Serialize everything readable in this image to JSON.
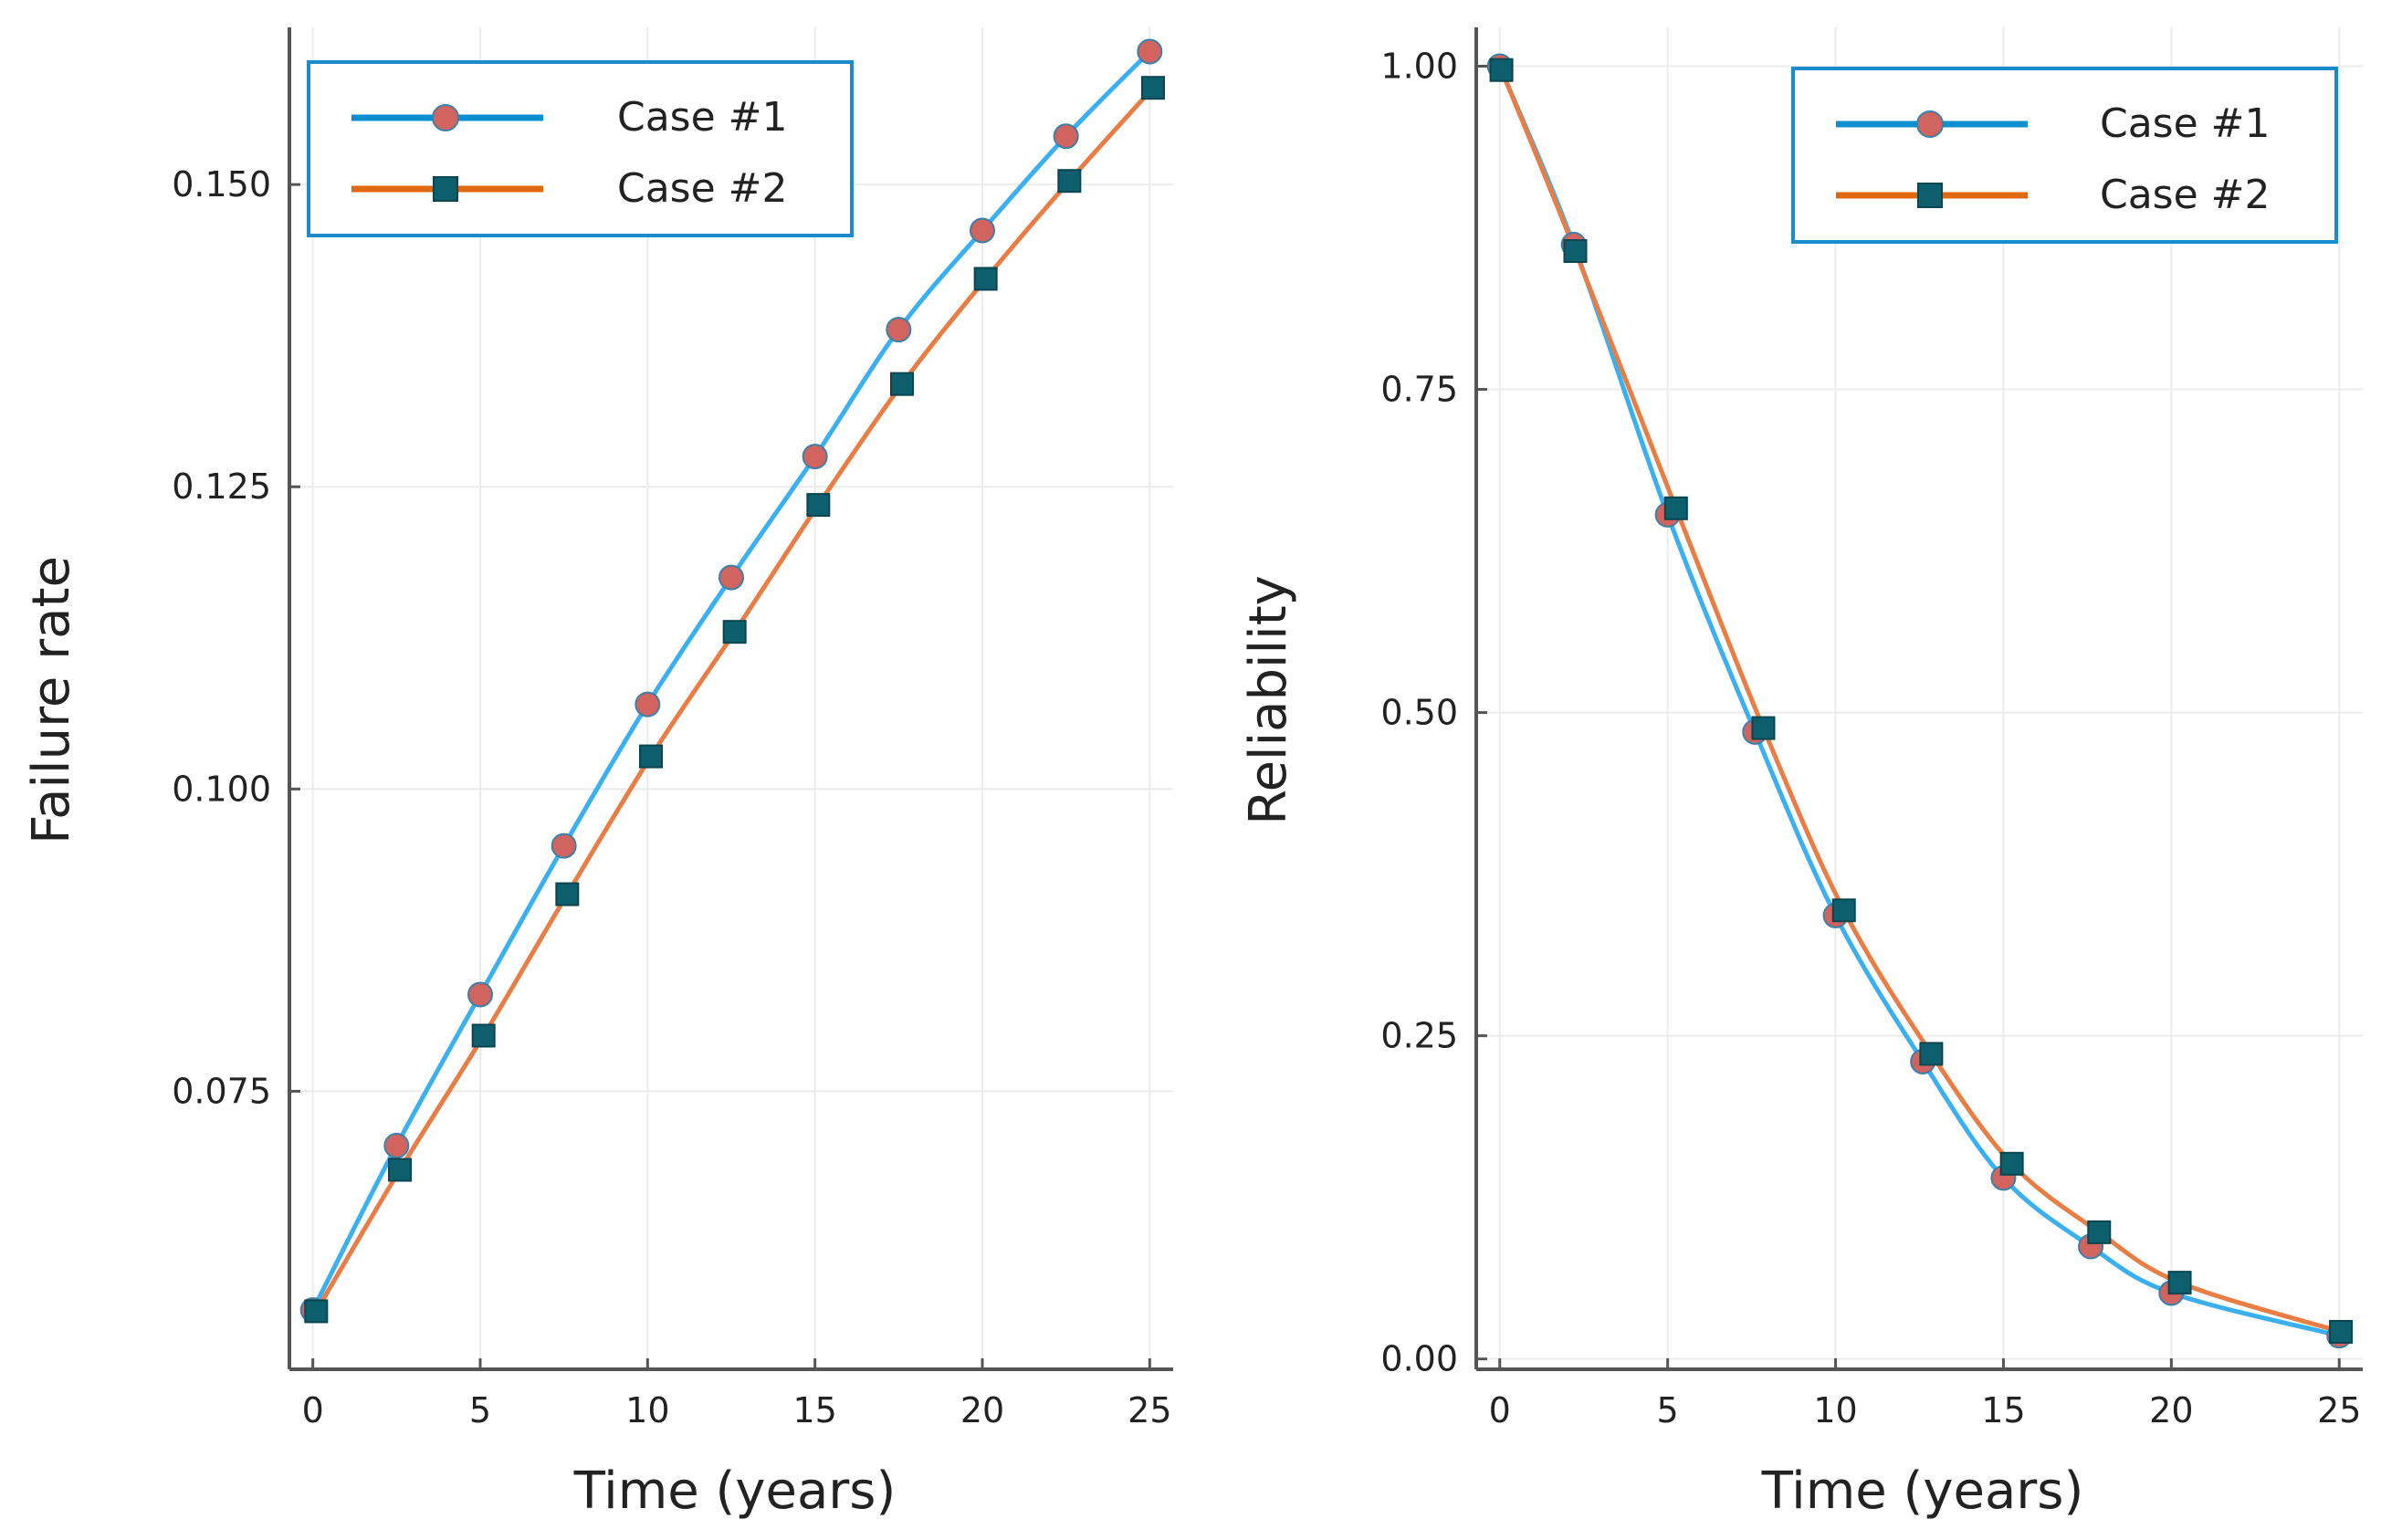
{
  "colors": {
    "case1_line": "#3ab0f0",
    "case1_legend_line": "#0a8fd0",
    "case1_marker": "#d2645f",
    "case2_line": "#e87e45",
    "case2_legend_line": "#e0680f",
    "case2_marker": "#0d5f6e",
    "legend_border": "#1a8ccc",
    "grid": "#ececec",
    "axis": "#555555"
  },
  "chart_data": [
    {
      "type": "line",
      "id": "failure",
      "title": "",
      "xlabel": "Time (years)",
      "ylabel": "Failure rate",
      "xlim": [
        -0.7,
        25.7
      ],
      "ylim": [
        0.052,
        0.163
      ],
      "xticks": [
        0,
        5,
        10,
        15,
        20,
        25
      ],
      "xtick_labels": [
        "0",
        "5",
        "10",
        "15",
        "20",
        "25"
      ],
      "yticks": [
        0.075,
        0.1,
        0.125,
        0.15
      ],
      "ytick_labels": [
        "0.075",
        "0.100",
        "0.125",
        "0.150"
      ],
      "legend_position": "top-left",
      "series": [
        {
          "name": "Case #1",
          "marker": "circle",
          "x": [
            0,
            2.5,
            5,
            7.5,
            10,
            12.5,
            15,
            17.5,
            20,
            22.5,
            25
          ],
          "y": [
            0.0569,
            0.0705,
            0.083,
            0.0953,
            0.107,
            0.1175,
            0.1275,
            0.138,
            0.1462,
            0.154,
            0.161
          ]
        },
        {
          "name": "Case #2",
          "marker": "square",
          "x": [
            0.1,
            2.6,
            5.1,
            7.6,
            10.1,
            12.6,
            15.1,
            17.6,
            20.1,
            22.6,
            25.1
          ],
          "y": [
            0.0568,
            0.0685,
            0.0796,
            0.0913,
            0.1027,
            0.113,
            0.1235,
            0.1335,
            0.1422,
            0.1503,
            0.158
          ]
        }
      ]
    },
    {
      "type": "line",
      "id": "reliability",
      "title": "",
      "xlabel": "Time (years)",
      "ylabel": "Reliability",
      "xlim": [
        -0.7,
        25.7
      ],
      "ylim": [
        -0.008,
        1.03
      ],
      "xticks": [
        0,
        5,
        10,
        15,
        20,
        25
      ],
      "xtick_labels": [
        "0",
        "5",
        "10",
        "15",
        "20",
        "25"
      ],
      "yticks": [
        0,
        0.25,
        0.5,
        0.75,
        1.0
      ],
      "ytick_labels": [
        "0.00",
        "0.25",
        "0.50",
        "0.75",
        "1.00"
      ],
      "legend_position": "top-right",
      "series": [
        {
          "name": "Case #1",
          "marker": "circle",
          "x": [
            0,
            2.2,
            5.0,
            7.6,
            10.0,
            12.6,
            15.0,
            17.6,
            20.0,
            25.0
          ],
          "y": [
            1.0,
            0.862,
            0.653,
            0.485,
            0.343,
            0.23,
            0.14,
            0.087,
            0.051,
            0.018
          ]
        },
        {
          "name": "Case #2",
          "marker": "square",
          "x": [
            0.05,
            2.25,
            5.25,
            7.85,
            10.25,
            12.85,
            15.25,
            17.85,
            20.25,
            25.05
          ],
          "y": [
            0.997,
            0.857,
            0.658,
            0.488,
            0.347,
            0.236,
            0.151,
            0.098,
            0.059,
            0.021
          ]
        }
      ]
    }
  ]
}
